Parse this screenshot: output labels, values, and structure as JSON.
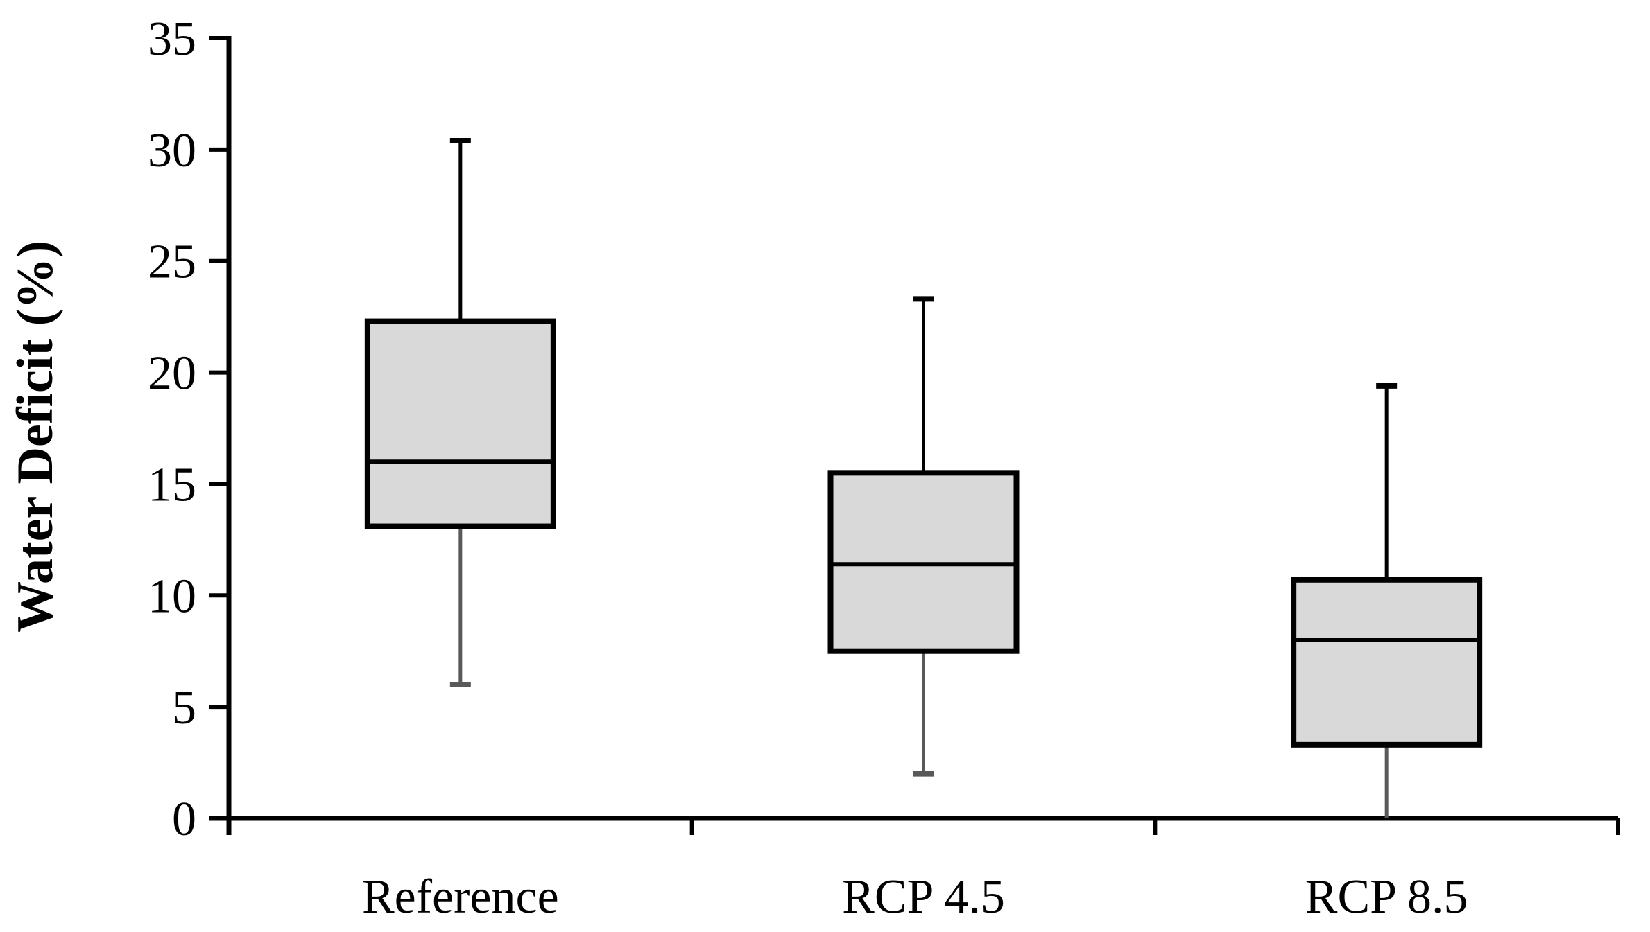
{
  "chart_data": {
    "type": "boxplot",
    "title": "",
    "ylabel": "Water Deficit (%)",
    "xlabel": "",
    "ylim": [
      0,
      35
    ],
    "yticks": [
      0,
      5,
      10,
      15,
      20,
      25,
      30,
      35
    ],
    "categories": [
      "Reference",
      "RCP 4.5",
      "RCP 8.5"
    ],
    "series": [
      {
        "name": "Reference",
        "whisker_low": 6.0,
        "q1": 13.1,
        "median": 16.0,
        "q3": 22.3,
        "whisker_high": 30.4,
        "whisker_low_cap": true
      },
      {
        "name": "RCP 4.5",
        "whisker_low": 2.0,
        "q1": 7.5,
        "median": 11.4,
        "q3": 15.5,
        "whisker_high": 23.3,
        "whisker_low_cap": true
      },
      {
        "name": "RCP 8.5",
        "whisker_low": 0.0,
        "q1": 3.3,
        "median": 8.0,
        "q3": 10.7,
        "whisker_high": 19.4,
        "whisker_low_cap": false
      }
    ],
    "grid": false,
    "legend": false,
    "colors": {
      "box_fill": "#d9d9d9",
      "box_border": "#000000",
      "median_line": "#000000",
      "whisker_upper": "#000000",
      "whisker_lower": "#595959",
      "axis": "#000000",
      "text": "#000000",
      "background": "#ffffff"
    }
  }
}
